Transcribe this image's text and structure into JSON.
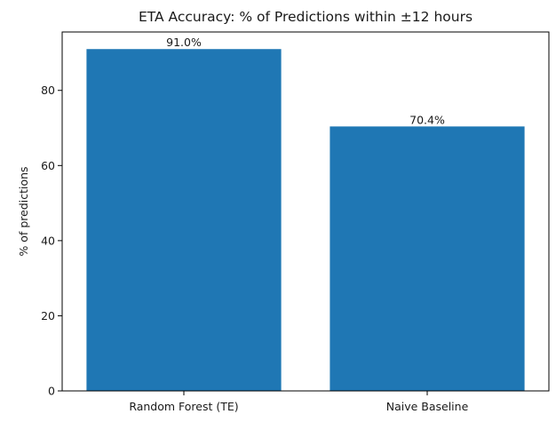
{
  "chart_data": {
    "type": "bar",
    "title": "ETA Accuracy: % of Predictions within ±12 hours",
    "xlabel": "",
    "ylabel": "% of predictions",
    "categories": [
      "Random Forest (TE)",
      "Naive Baseline"
    ],
    "values": [
      91.0,
      70.4
    ],
    "data_labels": [
      "91.0%",
      "70.4%"
    ],
    "yticks": [
      0,
      20,
      40,
      60,
      80
    ],
    "ytick_labels": [
      "0",
      "20",
      "40",
      "60",
      "80"
    ],
    "ylim": [
      0,
      95.55
    ],
    "grid": false,
    "legend": "none",
    "bar_color": "#1f77b4"
  }
}
